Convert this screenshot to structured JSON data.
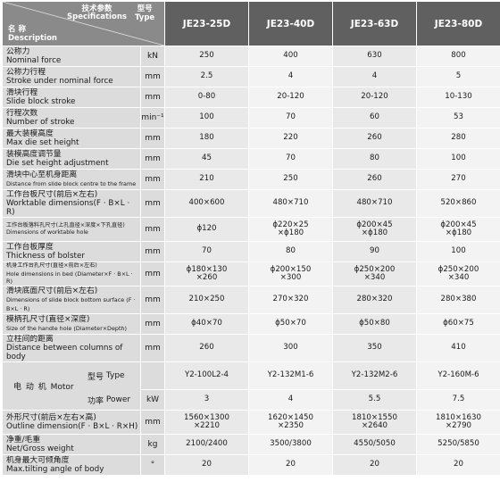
{
  "header": {
    "spec_cn": "技术参数",
    "spec_en": "Specifications",
    "type_cn": "型号",
    "type_en": "Type",
    "name_cn": "名 称",
    "name_en": "Description",
    "models": [
      "JE23-25D",
      "JE23-40D",
      "JE23-63D",
      "JE23-80D"
    ]
  },
  "rows": [
    {
      "cn": "公称力",
      "en": "Nominal force",
      "unit": "kN",
      "values": [
        "250",
        "400",
        "630",
        "800"
      ]
    },
    {
      "cn": "公称力行程",
      "en": "Stroke under nominal force",
      "unit": "mm",
      "values": [
        "2.5",
        "4",
        "4",
        "5"
      ]
    },
    {
      "cn": "滑块行程",
      "en": "Slide block stroke",
      "unit": "mm",
      "values": [
        "0-80",
        "20-120",
        "20-120",
        "10-130"
      ]
    },
    {
      "cn": "行程次数",
      "en": "Number of stroke",
      "unit": "min⁻¹",
      "values": [
        "100",
        "70",
        "60",
        "53"
      ]
    },
    {
      "cn": "最大装模高度",
      "en": "Max die set height",
      "unit": "mm",
      "values": [
        "180",
        "220",
        "260",
        "280"
      ]
    },
    {
      "cn": "装模高度调节量",
      "en": "Die set height adjustment",
      "unit": "mm",
      "values": [
        "45",
        "70",
        "80",
        "100"
      ]
    },
    {
      "cn": "滑块中心至机身距离",
      "en": "Distance from slide block centre to the frame",
      "unit": "mm",
      "values": [
        "210",
        "250",
        "260",
        "270"
      ]
    },
    {
      "cn": "工作台板尺寸(前后×左右)",
      "en": "Worktable dimensions(F · B×L · R)",
      "unit": "mm",
      "values": [
        "400×600",
        "480×710",
        "480×710",
        "520×860"
      ]
    },
    {
      "cn": "工作台板落料孔尺寸(上孔直径×深度×下孔直径)",
      "en": "Dimensions of worktable hole",
      "unit": "mm",
      "values": [
        "ϕ120",
        "ϕ220×25\n×ϕ180",
        "ϕ200×45\n×ϕ180",
        "ϕ200×45\n×ϕ180"
      ]
    },
    {
      "cn": "工作台板厚度",
      "en": "Thickness of bolster",
      "unit": "mm",
      "values": [
        "70",
        "80",
        "90",
        "100"
      ]
    },
    {
      "cn": "机身工作台孔尺寸(直径×前后×左右)",
      "en": "Hole dimensions in bed (Diameter×F · B×L · R)",
      "unit": "mm",
      "values": [
        "ϕ180×130\n×260",
        "ϕ200×150\n×300",
        "ϕ250×200\n×340",
        "ϕ250×200\n×340"
      ]
    },
    {
      "cn": "滑块底面尺寸(前后×左右)",
      "en": "Dimensions of slide block bottom surface (F · B×L · R)",
      "unit": "mm",
      "values": [
        "210×250",
        "270×320",
        "280×320",
        "280×380"
      ]
    },
    {
      "cn": "模柄孔尺寸(直径×深度)",
      "en": "Size of the handle hole (Diameter×Depth)",
      "unit": "mm",
      "values": [
        "ϕ40×70",
        "ϕ50×70",
        "ϕ50×80",
        "ϕ60×75"
      ]
    },
    {
      "cn": "立柱间的距离",
      "en": "Distance between columns of body",
      "unit": "mm",
      "values": [
        "260",
        "300",
        "350",
        "410"
      ]
    }
  ],
  "motor": {
    "label_cn": "电 动 机",
    "label_en": "Motor",
    "type_cn": "型号",
    "type_en": "Type",
    "type_values": [
      "Y2-100L2-4",
      "Y2-132M1-6",
      "Y2-132M2-6",
      "Y2-160M-6"
    ],
    "power_cn": "功率",
    "power_en": "Power",
    "power_unit": "kW",
    "power_values": [
      "3",
      "4",
      "5.5",
      "7.5"
    ]
  },
  "tail_rows": [
    {
      "cn": "外形尺寸(前后×左右×高)",
      "en": "Outline dimension(F · B×L · R×H)",
      "unit": "mm",
      "values": [
        "1560×1300\n×2210",
        "1620×1450\n×2350",
        "1810×1550\n×2640",
        "1810×1630\n×2790"
      ]
    },
    {
      "cn": "净重/毛重",
      "en": "Net/Gross weight",
      "unit": "kg",
      "values": [
        "2100/2400",
        "3500/3800",
        "4550/5050",
        "5250/5850"
      ]
    },
    {
      "cn": "机身最大可倾角度",
      "en": "Max.tilting angle of body",
      "unit": "°",
      "values": [
        "20",
        "20",
        "20",
        "20"
      ]
    }
  ],
  "colors": {
    "header_dark": "#606060",
    "header_mid": "#8a8a8a",
    "label_bg": "#dcdcdc",
    "cell_bg": "#e9e9e9"
  }
}
